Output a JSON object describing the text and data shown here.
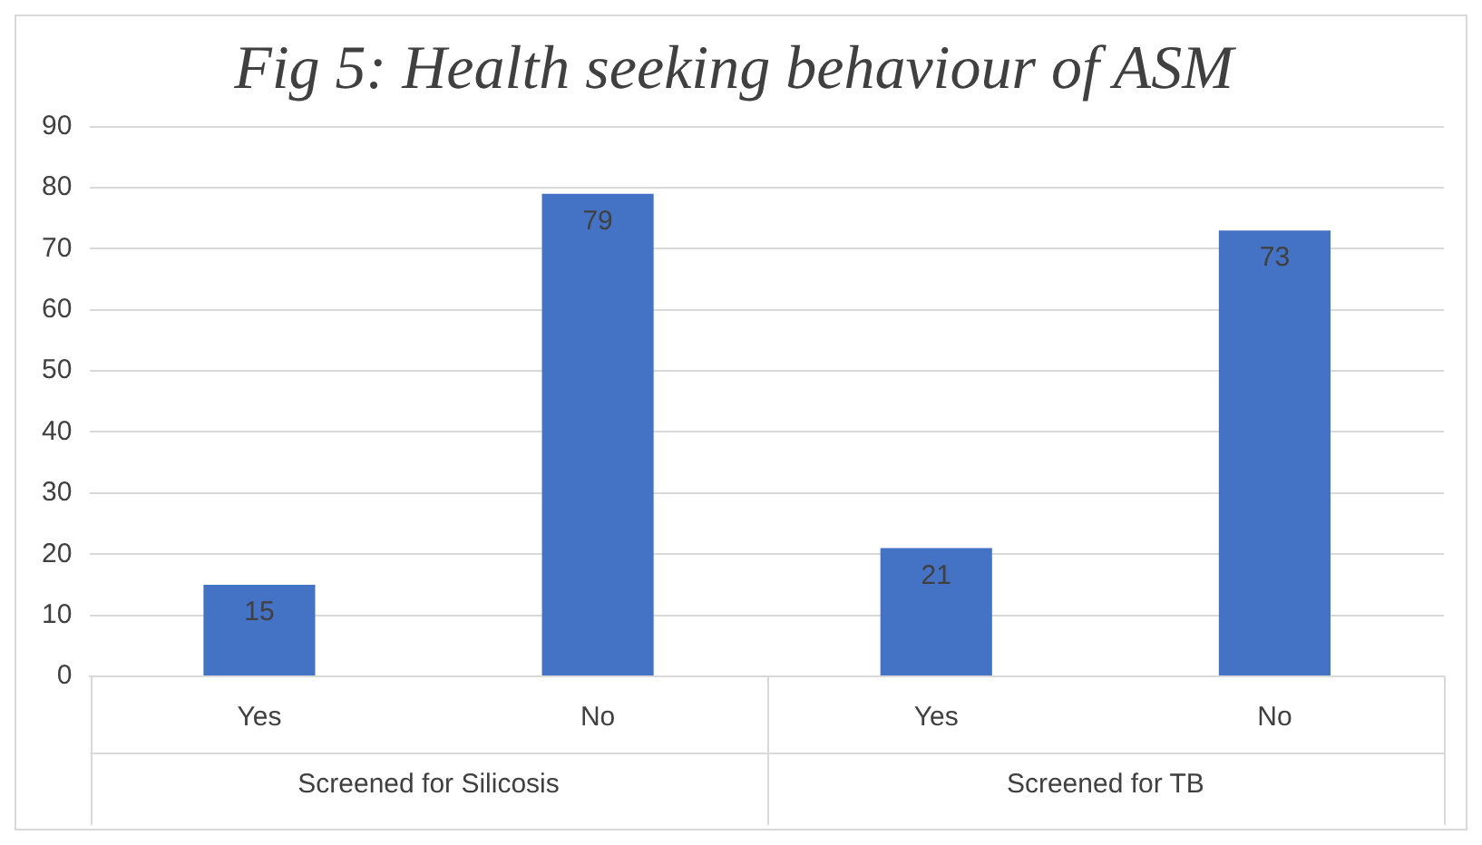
{
  "chart_data": {
    "type": "bar",
    "title": "Fig 5: Health seeking behaviour of ASM",
    "categories": [
      "Yes",
      "No",
      "Yes",
      "No"
    ],
    "values": [
      15,
      79,
      21,
      73
    ],
    "color": "#4472c4",
    "ylim": [
      0,
      90
    ],
    "yticks": [
      0,
      10,
      20,
      30,
      40,
      50,
      60,
      70,
      80,
      90
    ],
    "grid": "y",
    "data_labels": true,
    "legend": false,
    "annotations": [
      "Screened for Silicosis",
      "Screened for TB"
    ]
  }
}
